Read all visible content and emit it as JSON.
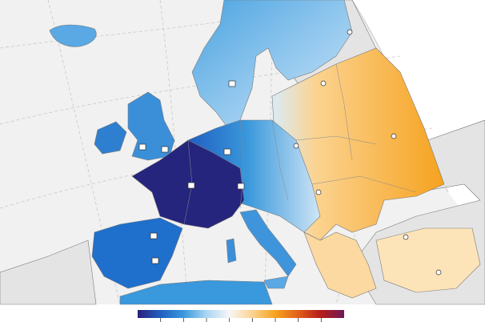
{
  "legend": {
    "colors": [
      "#2b1f7a",
      "#1f5fc0",
      "#3a98dc",
      "#a9d6f2",
      "#f6f6f6",
      "#fbd391",
      "#f6a21e",
      "#e0601a",
      "#b51a1a",
      "#6e1a5a"
    ]
  }
}
